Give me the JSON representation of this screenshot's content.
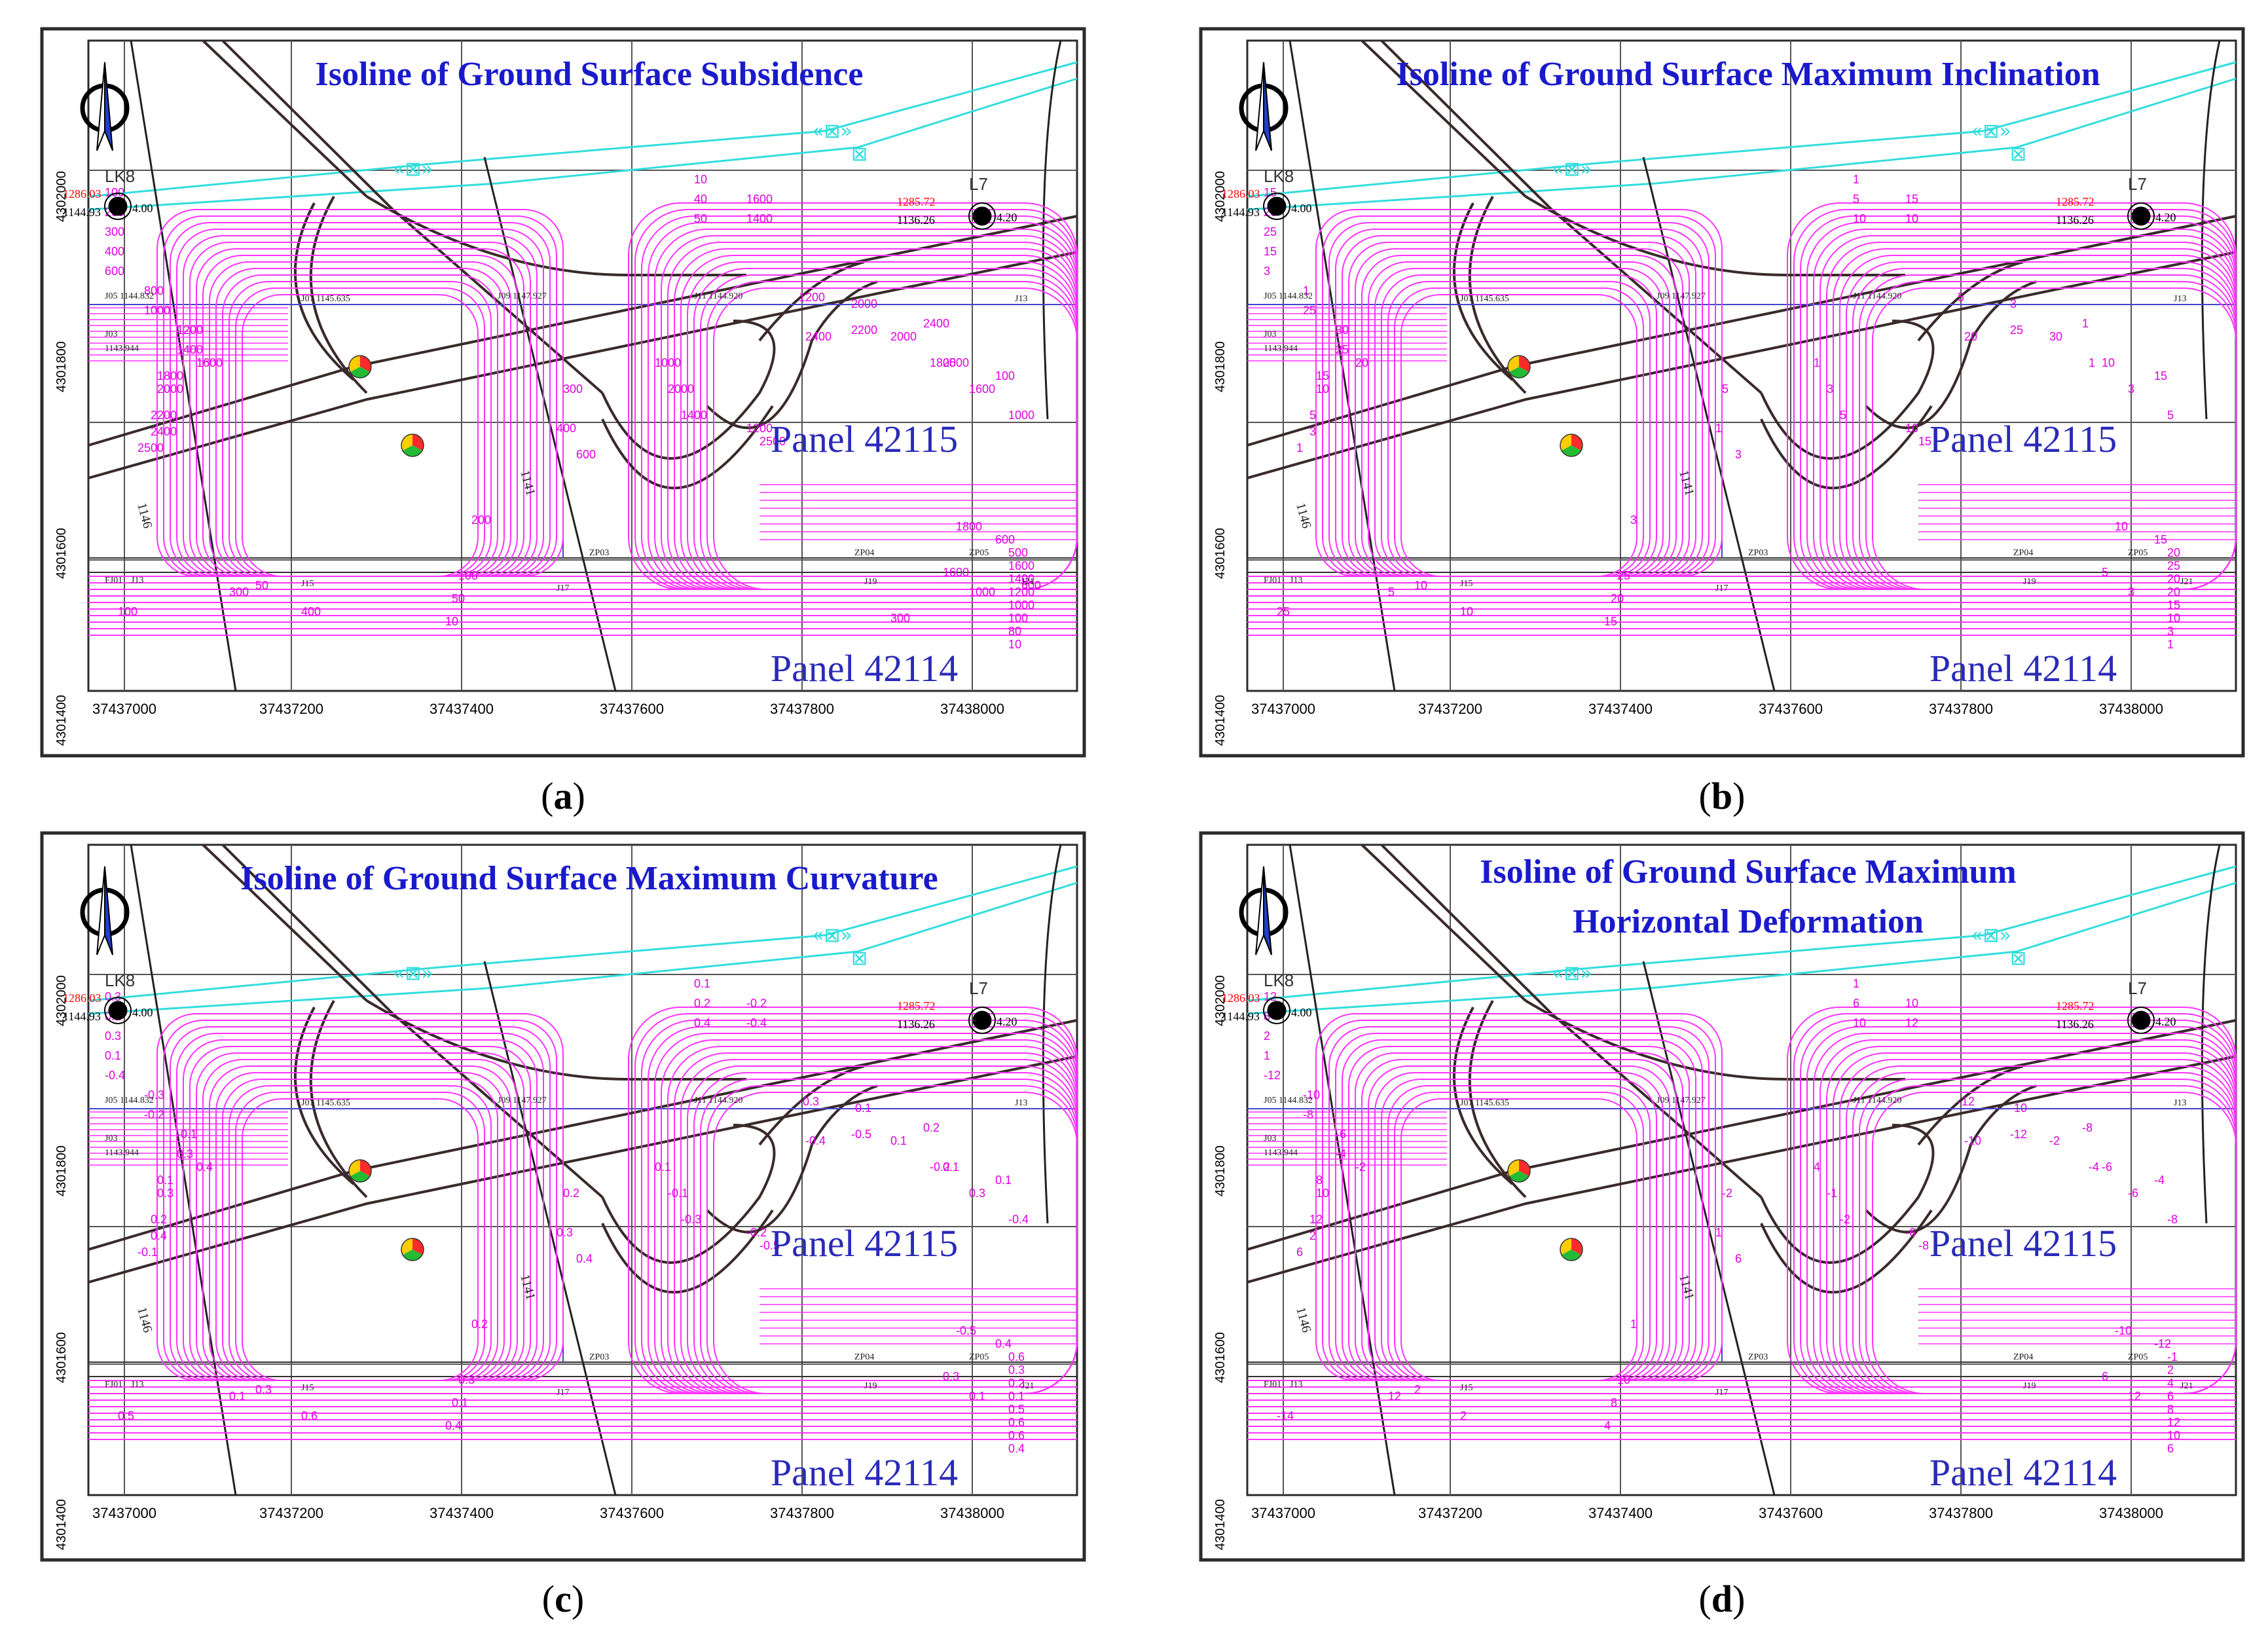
{
  "figure": {
    "north_arrow": "north-arrow-icon",
    "colors": {
      "frame": "#2b2b2b",
      "grid": "#555555",
      "isoline": "#ff33ff",
      "isoline_label": "#e000e0",
      "title": "#1a1acc",
      "panel_label": "#2a2ab8",
      "pipeline": "#33dddd",
      "road": "#3a2a2a",
      "point_red": "#ff0000"
    },
    "x_ticks": [
      "37437000",
      "37437200",
      "37437400",
      "37437600",
      "37437800",
      "37438000"
    ],
    "y_ticks": [
      "4302000",
      "4301800",
      "4301600",
      "4301400"
    ],
    "stations": {
      "lk8": {
        "name": "LK8",
        "elev_red": "1286.03",
        "elev_black": "1144.93",
        "value": "4.00"
      },
      "l7": {
        "name": "L7",
        "elev_red": "1285.72",
        "elev_black": "1136.26",
        "value": "4.20"
      }
    },
    "benchmarks": {
      "j05": "J05 1144.832",
      "j07": "J07 1145.635",
      "j09": "J09 1147.927",
      "j11": "J11 1144.920",
      "j13": "J13",
      "j03": "J03",
      "j03_elev": "1143.944",
      "fj01": "FJ01",
      "j13b": "J13",
      "j15": "J15",
      "j17": "J17",
      "j19": "J19",
      "j21": "J21",
      "zp03": "ZP03",
      "zp04": "ZP04",
      "zp05": "ZP05",
      "road_1146": "1146",
      "road_1141": "1141"
    },
    "panel_labels": {
      "upper": "Panel 42115",
      "lower": "Panel 42114"
    }
  },
  "panels": [
    {
      "id": "a",
      "caption": "a",
      "title_lines": [
        "Isoline of Ground Surface Subsidence"
      ],
      "contour_labels": [
        "10",
        "40",
        "50",
        "100",
        "200",
        "300",
        "400",
        "600",
        "800",
        "1000",
        "1200",
        "1400",
        "1600",
        "1800",
        "2000",
        "2200",
        "2400",
        "2500",
        "1600",
        "1400",
        "1200",
        "2000",
        "2400",
        "2500",
        "100",
        "300",
        "400",
        "600",
        "1000",
        "2000",
        "1400",
        "1200",
        "2500",
        "2400",
        "2200",
        "2000",
        "1800",
        "1600",
        "1000",
        "1800",
        "600",
        "500",
        "1600",
        "1400",
        "1200",
        "1000",
        "100",
        "80",
        "10",
        "100",
        "50",
        "300",
        "200",
        "100",
        "50",
        "10",
        "400",
        "1600",
        "1000",
        "600",
        "300"
      ]
    },
    {
      "id": "b",
      "caption": "b",
      "title_lines": [
        "Isoline of  Ground Surface Maximum Inclination"
      ],
      "contour_labels": [
        "1",
        "5",
        "10",
        "15",
        "20",
        "25",
        "15",
        "3",
        "1",
        "25",
        "30",
        "25",
        "20",
        "15",
        "10",
        "5",
        "3",
        "1",
        "15",
        "10",
        "5",
        "3",
        "1",
        "10",
        "15",
        "5",
        "1",
        "3",
        "1",
        "3",
        "5",
        "10",
        "15",
        "20",
        "25",
        "30",
        "1",
        "3",
        "5",
        "10",
        "15",
        "20",
        "25",
        "20",
        "20",
        "15",
        "10",
        "3",
        "1",
        "25",
        "10",
        "5",
        "3",
        "25",
        "20",
        "15",
        "10",
        "5",
        "3"
      ]
    },
    {
      "id": "c",
      "caption": "c",
      "title_lines": [
        "Isoline of Ground Surface Maximum Curvature"
      ],
      "contour_labels": [
        "0.1",
        "0.2",
        "0.4",
        "0.3",
        "0.2",
        "0.3",
        "0.1",
        "-0.4",
        "-0.3",
        "-0.2",
        "-0.1",
        "0.3",
        "0.4",
        "0.1",
        "0.3",
        "0.2",
        "0.4",
        "-0.1",
        "-0.2",
        "-0.4",
        "-0.3",
        "-0.1",
        "0.2",
        "0.1",
        "0.1",
        "0.2",
        "0.3",
        "0.4",
        "0.1",
        "-0.1",
        "-0.3",
        "-0.2",
        "-0.5",
        "-0.4",
        "-0.5",
        "0.1",
        "-0.2",
        "0.3",
        "-0.4",
        "-0.5",
        "0.4",
        "0.6",
        "0.3",
        "0.2",
        "0.1",
        "0.5",
        "0.6",
        "0.6",
        "0.4",
        "0.5",
        "0.3",
        "0.1",
        "0.2",
        "0.3",
        "0.1",
        "0.4",
        "0.6",
        "0.3",
        "0.1"
      ]
    },
    {
      "id": "d",
      "caption": "d",
      "title_lines": [
        "Isoline of Ground Surface Maximum",
        "Horizontal Deformation"
      ],
      "contour_labels": [
        "1",
        "6",
        "10",
        "12",
        "8",
        "2",
        "1",
        "-12",
        "-10",
        "-8",
        "-6",
        "-4",
        "-2",
        "8",
        "10",
        "12",
        "2",
        "6",
        "10",
        "12",
        "-12",
        "-10",
        "-8",
        "-6",
        "-4",
        "-2",
        "1",
        "6",
        "4",
        "-1",
        "-2",
        "-6",
        "-8",
        "-10",
        "-12",
        "-2",
        "-4",
        "-6",
        "-8",
        "-10",
        "-12",
        "-1",
        "2",
        "4",
        "6",
        "8",
        "12",
        "10",
        "6",
        "-14",
        "2",
        "12",
        "1",
        "10",
        "8",
        "4",
        "2",
        "6",
        "12"
      ]
    }
  ]
}
